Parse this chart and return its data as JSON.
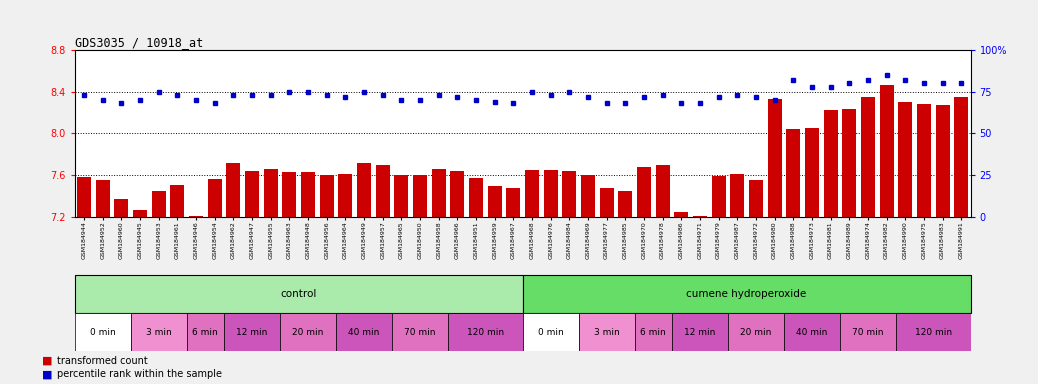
{
  "title": "GDS3035 / 10918_at",
  "bar_values": [
    7.58,
    7.55,
    7.37,
    7.27,
    7.45,
    7.51,
    7.21,
    7.56,
    7.72,
    7.64,
    7.66,
    7.63,
    7.63,
    7.6,
    7.61,
    7.72,
    7.7,
    7.6,
    7.6,
    7.66,
    7.64,
    7.57,
    7.5,
    7.48,
    7.65,
    7.65,
    7.64,
    7.6,
    7.48,
    7.45,
    7.68,
    7.7,
    7.25,
    7.21,
    7.59,
    7.61,
    7.55,
    8.33,
    8.04,
    8.05,
    8.22,
    8.23,
    8.35,
    8.46,
    8.3,
    8.28,
    8.27,
    8.35
  ],
  "dot_values": [
    73,
    70,
    68,
    70,
    75,
    73,
    70,
    68,
    73,
    73,
    73,
    75,
    75,
    73,
    72,
    75,
    73,
    70,
    70,
    73,
    72,
    70,
    69,
    68,
    75,
    73,
    75,
    72,
    68,
    68,
    72,
    73,
    68,
    68,
    72,
    73,
    72,
    70,
    82,
    78,
    78,
    80,
    82,
    85,
    82,
    80,
    80,
    80
  ],
  "sample_ids": [
    "GSM184944",
    "GSM184952",
    "GSM184960",
    "GSM184945",
    "GSM184953",
    "GSM184961",
    "GSM184946",
    "GSM184954",
    "GSM184962",
    "GSM184947",
    "GSM184955",
    "GSM184963",
    "GSM184948",
    "GSM184956",
    "GSM184964",
    "GSM184949",
    "GSM184957",
    "GSM184965",
    "GSM184950",
    "GSM184958",
    "GSM184966",
    "GSM184951",
    "GSM184959",
    "GSM184967",
    "GSM184968",
    "GSM184976",
    "GSM184984",
    "GSM184969",
    "GSM184977",
    "GSM184985",
    "GSM184970",
    "GSM184978",
    "GSM184986",
    "GSM184971",
    "GSM184979",
    "GSM184987",
    "GSM184972",
    "GSM184980",
    "GSM184988",
    "GSM184973",
    "GSM184981",
    "GSM184989",
    "GSM184974",
    "GSM184982",
    "GSM184990",
    "GSM184975",
    "GSM184983",
    "GSM184991"
  ],
  "bar_color": "#cc0000",
  "dot_color": "#0000cc",
  "ylim_left": [
    7.2,
    8.8
  ],
  "ylim_right": [
    0,
    100
  ],
  "yticks_left": [
    7.2,
    7.6,
    8.0,
    8.4,
    8.8
  ],
  "yticks_right": [
    0,
    25,
    50,
    75,
    100
  ],
  "hlines": [
    7.6,
    8.0,
    8.4
  ],
  "agent_control_color": "#aaeaaa",
  "agent_cumene_color": "#66dd66",
  "time_colors": [
    "#ffffff",
    "#f090d0",
    "#e070c0",
    "#cc55bb",
    "#e070c0",
    "#cc55bb",
    "#e070c0",
    "#cc55bb"
  ],
  "time_labels": [
    "0 min",
    "3 min",
    "6 min",
    "12 min",
    "20 min",
    "40 min",
    "70 min",
    "120 min"
  ],
  "control_time_ends": [
    3,
    6,
    8,
    11,
    14,
    17,
    20,
    24
  ],
  "cumene_time_ends": [
    27,
    30,
    32,
    35,
    38,
    41,
    44,
    48
  ],
  "bg_color": "#f0f0f0",
  "n_bars": 48
}
